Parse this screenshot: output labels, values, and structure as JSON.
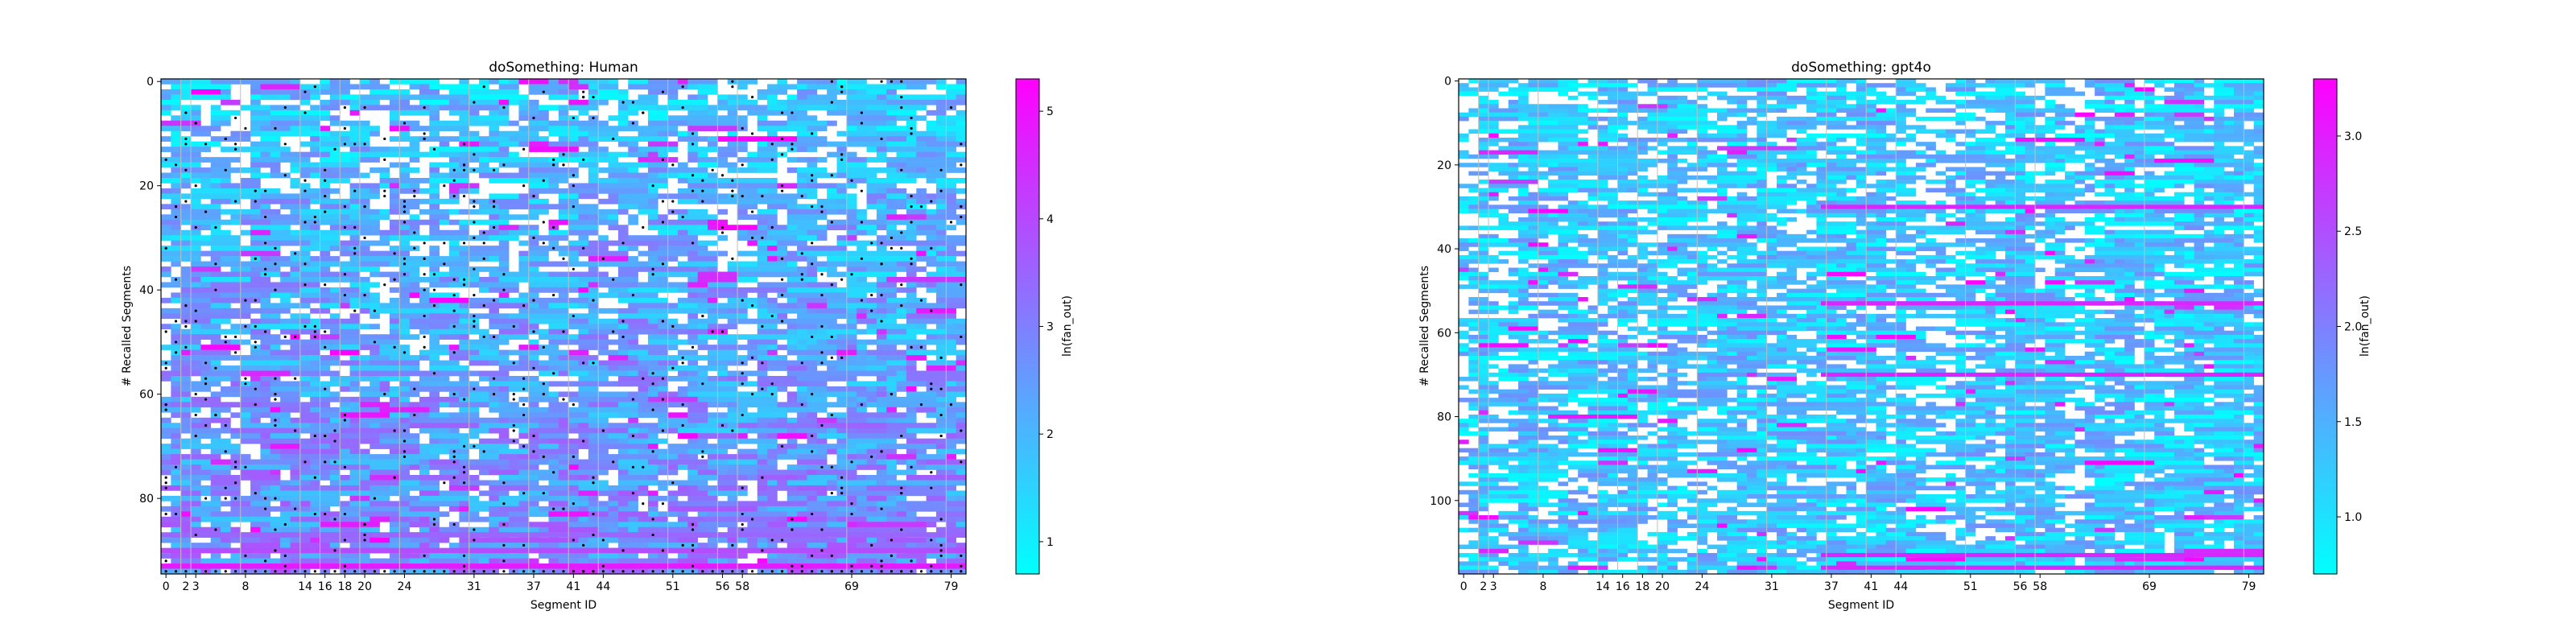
{
  "colormap": {
    "low": "#00ffff",
    "high": "#ff00ff",
    "marker": "#000000",
    "divider": "#bfbfbf"
  },
  "chart_data": [
    {
      "type": "heatmap",
      "title": "doSomething: Human",
      "xlabel": "Segment ID",
      "ylabel": "# Recalled Segments",
      "colorbar_label": "ln(fan_out)",
      "x_range": [
        0,
        81
      ],
      "y_range": [
        0,
        95
      ],
      "x_ticks": [
        0,
        2,
        3,
        8,
        14,
        16,
        18,
        20,
        24,
        31,
        37,
        41,
        44,
        51,
        56,
        58,
        69,
        79
      ],
      "y_ticks": [
        0,
        20,
        40,
        60,
        80
      ],
      "colorbar_range": [
        0.7,
        5.3
      ],
      "colorbar_ticks": [
        1,
        2,
        3,
        4,
        5
      ],
      "dividers": [
        2,
        3,
        8,
        14,
        16,
        18,
        20,
        24,
        31,
        37,
        41,
        44,
        51,
        56,
        58,
        69,
        79
      ],
      "has_markers": true,
      "seed": 7,
      "grid": false
    },
    {
      "type": "heatmap",
      "title": "doSomething: gpt4o",
      "xlabel": "Segment ID",
      "ylabel": "# Recalled Segments",
      "colorbar_label": "ln(fan_out)",
      "x_range": [
        0,
        81
      ],
      "y_range": [
        0,
        118
      ],
      "x_ticks": [
        0,
        2,
        3,
        8,
        14,
        16,
        18,
        20,
        24,
        31,
        37,
        41,
        44,
        51,
        56,
        58,
        69,
        79
      ],
      "y_ticks": [
        0,
        20,
        40,
        60,
        80,
        100
      ],
      "colorbar_range": [
        0.7,
        3.3
      ],
      "colorbar_ticks": [
        1.0,
        1.5,
        2.0,
        2.5,
        3.0
      ],
      "dividers": [
        2,
        3,
        8,
        14,
        16,
        18,
        20,
        24,
        31,
        37,
        41,
        44,
        51,
        56,
        58,
        69,
        79
      ],
      "has_markers": false,
      "seed": 13,
      "grid": false
    }
  ]
}
